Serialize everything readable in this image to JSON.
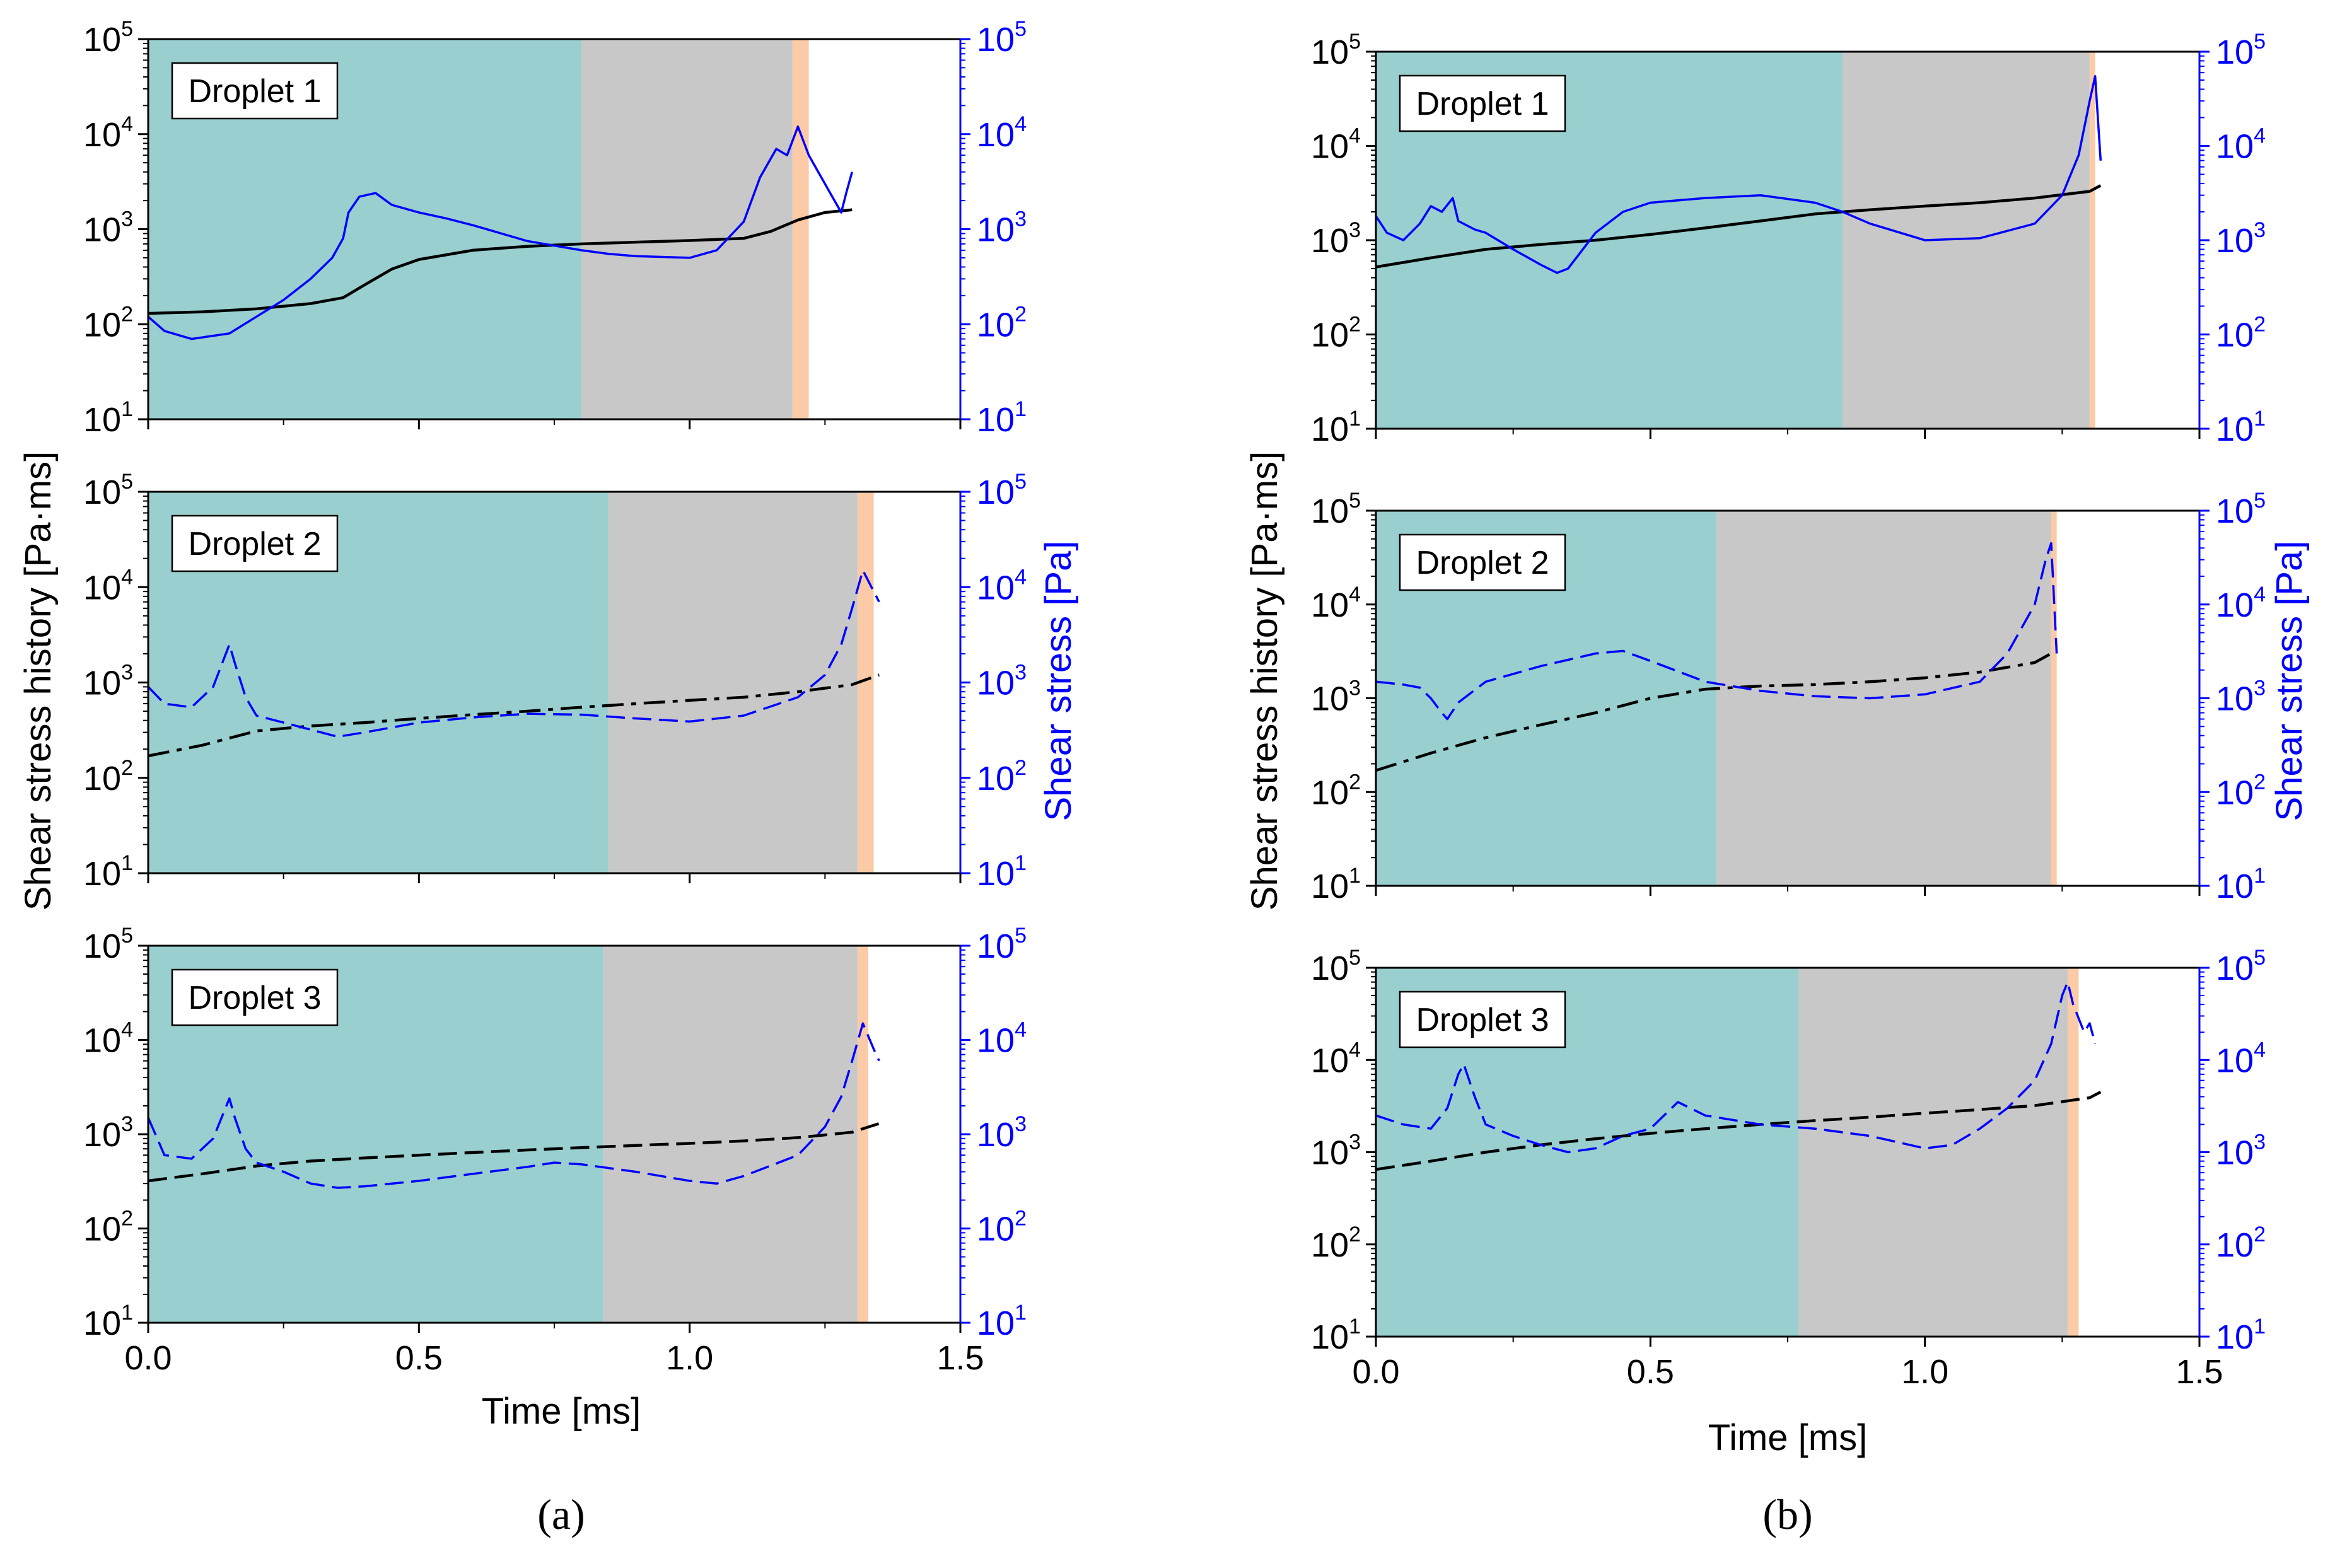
{
  "figure": {
    "left_ylabel": "Shear stress history [Pa·ms]",
    "right_ylabel": "Shear stress [Pa]",
    "xlabel": "Time [ms]",
    "xticks": [
      "0.0",
      "0.5",
      "1.0",
      "1.5"
    ],
    "yticks": [
      {
        "base": "10",
        "exp": "1"
      },
      {
        "base": "10",
        "exp": "2"
      },
      {
        "base": "10",
        "exp": "3"
      },
      {
        "base": "10",
        "exp": "4"
      },
      {
        "base": "10",
        "exp": "5"
      }
    ],
    "caption_a": "(a)",
    "caption_b": "(b)",
    "colors": {
      "phase1": "#99CFCF",
      "phase2": "#C8C8C8",
      "phase3": "#FACBA6",
      "history": "#000000",
      "stress": "#0000FF"
    }
  },
  "chart_data": [
    {
      "type": "line",
      "panel": "a",
      "title": "Droplet 1",
      "xlim": [
        0,
        1.5
      ],
      "ylim": [
        10,
        100000
      ],
      "yscale": "log",
      "phases": [
        [
          0,
          0.8
        ],
        [
          0.8,
          1.19
        ],
        [
          1.19,
          1.22
        ]
      ],
      "series": [
        {
          "name": "Shear stress history",
          "axis": "left",
          "style": "solid",
          "x": [
            0,
            0.1,
            0.2,
            0.3,
            0.36,
            0.4,
            0.45,
            0.5,
            0.6,
            0.7,
            0.8,
            0.9,
            1.0,
            1.1,
            1.15,
            1.2,
            1.25,
            1.3
          ],
          "y": [
            130,
            135,
            145,
            165,
            190,
            260,
            380,
            480,
            600,
            660,
            700,
            730,
            760,
            800,
            950,
            1250,
            1500,
            1600
          ]
        },
        {
          "name": "Shear stress",
          "axis": "right",
          "style": "solid",
          "x": [
            0,
            0.03,
            0.08,
            0.15,
            0.2,
            0.25,
            0.3,
            0.34,
            0.36,
            0.37,
            0.39,
            0.42,
            0.45,
            0.5,
            0.55,
            0.6,
            0.7,
            0.8,
            0.85,
            0.9,
            1.0,
            1.05,
            1.1,
            1.13,
            1.16,
            1.18,
            1.2,
            1.22,
            1.25,
            1.28,
            1.29,
            1.3
          ],
          "y": [
            120,
            85,
            70,
            80,
            120,
            180,
            300,
            500,
            800,
            1500,
            2200,
            2400,
            1800,
            1500,
            1300,
            1100,
            750,
            600,
            550,
            520,
            500,
            600,
            1200,
            3500,
            7000,
            6000,
            12000,
            6000,
            3000,
            1500,
            2500,
            4000
          ]
        }
      ]
    },
    {
      "type": "line",
      "panel": "a",
      "title": "Droplet 2",
      "xlim": [
        0,
        1.5
      ],
      "ylim": [
        10,
        100000
      ],
      "yscale": "log",
      "phases": [
        [
          0,
          0.85
        ],
        [
          0.85,
          1.31
        ],
        [
          1.31,
          1.34
        ]
      ],
      "series": [
        {
          "name": "Shear stress history",
          "axis": "left",
          "style": "dashdot",
          "x": [
            0,
            0.1,
            0.2,
            0.3,
            0.4,
            0.5,
            0.6,
            0.7,
            0.8,
            0.9,
            1.0,
            1.1,
            1.2,
            1.3,
            1.35
          ],
          "y": [
            170,
            220,
            310,
            350,
            380,
            420,
            460,
            500,
            550,
            600,
            650,
            700,
            800,
            950,
            1200
          ]
        },
        {
          "name": "Shear stress",
          "axis": "right",
          "style": "dashed",
          "x": [
            0,
            0.03,
            0.08,
            0.12,
            0.15,
            0.16,
            0.18,
            0.2,
            0.25,
            0.3,
            0.35,
            0.4,
            0.5,
            0.6,
            0.7,
            0.8,
            0.9,
            1.0,
            1.1,
            1.2,
            1.25,
            1.28,
            1.3,
            1.32,
            1.34,
            1.35
          ],
          "y": [
            900,
            600,
            550,
            900,
            2500,
            1600,
            700,
            450,
            380,
            320,
            270,
            300,
            380,
            430,
            470,
            460,
            420,
            390,
            450,
            700,
            1200,
            2500,
            6000,
            15000,
            9000,
            7000
          ]
        }
      ]
    },
    {
      "type": "line",
      "panel": "a",
      "title": "Droplet 3",
      "xlim": [
        0,
        1.5
      ],
      "ylim": [
        10,
        100000
      ],
      "yscale": "log",
      "phases": [
        [
          0,
          0.84
        ],
        [
          0.84,
          1.31
        ],
        [
          1.31,
          1.33
        ]
      ],
      "series": [
        {
          "name": "Shear stress history",
          "axis": "left",
          "style": "dashed",
          "x": [
            0,
            0.1,
            0.2,
            0.3,
            0.4,
            0.5,
            0.6,
            0.7,
            0.8,
            0.9,
            1.0,
            1.1,
            1.2,
            1.3,
            1.35
          ],
          "y": [
            320,
            380,
            460,
            520,
            560,
            600,
            640,
            680,
            720,
            760,
            800,
            850,
            920,
            1050,
            1300
          ]
        },
        {
          "name": "Shear stress",
          "axis": "right",
          "style": "dashed",
          "x": [
            0,
            0.03,
            0.08,
            0.12,
            0.15,
            0.16,
            0.18,
            0.2,
            0.25,
            0.3,
            0.35,
            0.4,
            0.5,
            0.6,
            0.7,
            0.75,
            0.8,
            0.9,
            1.0,
            1.05,
            1.1,
            1.2,
            1.25,
            1.28,
            1.3,
            1.32,
            1.34,
            1.35
          ],
          "y": [
            1500,
            600,
            550,
            900,
            2400,
            1500,
            700,
            500,
            400,
            300,
            270,
            280,
            320,
            380,
            450,
            500,
            480,
            400,
            320,
            300,
            360,
            600,
            1200,
            2500,
            6000,
            15000,
            8000,
            6000
          ]
        }
      ]
    },
    {
      "type": "line",
      "panel": "b",
      "title": "Droplet 1",
      "xlim": [
        0,
        1.5
      ],
      "ylim": [
        10,
        100000
      ],
      "yscale": "log",
      "phases": [
        [
          0,
          0.85
        ],
        [
          0.85,
          1.3
        ],
        [
          1.3,
          1.31
        ]
      ],
      "series": [
        {
          "name": "Shear stress history",
          "axis": "left",
          "style": "solid",
          "x": [
            0,
            0.1,
            0.2,
            0.3,
            0.4,
            0.5,
            0.6,
            0.7,
            0.8,
            0.9,
            1.0,
            1.1,
            1.2,
            1.3,
            1.32
          ],
          "y": [
            520,
            650,
            800,
            900,
            1000,
            1150,
            1350,
            1600,
            1900,
            2100,
            2300,
            2500,
            2800,
            3300,
            3800
          ]
        },
        {
          "name": "Shear stress",
          "axis": "right",
          "style": "solid",
          "x": [
            0,
            0.02,
            0.05,
            0.08,
            0.1,
            0.12,
            0.14,
            0.15,
            0.18,
            0.2,
            0.25,
            0.3,
            0.33,
            0.35,
            0.4,
            0.45,
            0.5,
            0.6,
            0.7,
            0.8,
            0.85,
            0.9,
            1.0,
            1.1,
            1.2,
            1.25,
            1.28,
            1.3,
            1.31,
            1.32
          ],
          "y": [
            1800,
            1200,
            1000,
            1500,
            2300,
            2000,
            2800,
            1600,
            1300,
            1200,
            800,
            550,
            450,
            500,
            1200,
            2000,
            2500,
            2800,
            3000,
            2500,
            2000,
            1500,
            1000,
            1050,
            1500,
            3000,
            8000,
            30000,
            55000,
            7000
          ]
        }
      ]
    },
    {
      "type": "line",
      "panel": "b",
      "title": "Droplet 2",
      "xlim": [
        0,
        1.5
      ],
      "ylim": [
        10,
        100000
      ],
      "yscale": "log",
      "phases": [
        [
          0,
          0.62
        ],
        [
          0.62,
          1.23
        ],
        [
          1.23,
          1.24
        ]
      ],
      "series": [
        {
          "name": "Shear stress history",
          "axis": "left",
          "style": "dashdot",
          "x": [
            0,
            0.1,
            0.2,
            0.3,
            0.4,
            0.5,
            0.6,
            0.7,
            0.8,
            0.9,
            1.0,
            1.1,
            1.2,
            1.23
          ],
          "y": [
            170,
            260,
            380,
            520,
            700,
            1000,
            1250,
            1350,
            1400,
            1500,
            1650,
            1900,
            2400,
            3000
          ]
        },
        {
          "name": "Shear stress",
          "axis": "right",
          "style": "dashed",
          "x": [
            0,
            0.05,
            0.08,
            0.1,
            0.12,
            0.13,
            0.15,
            0.2,
            0.3,
            0.4,
            0.45,
            0.5,
            0.6,
            0.7,
            0.8,
            0.9,
            1.0,
            1.1,
            1.15,
            1.2,
            1.22,
            1.23,
            1.24
          ],
          "y": [
            1500,
            1400,
            1300,
            1000,
            700,
            600,
            900,
            1500,
            2200,
            3000,
            3200,
            2500,
            1500,
            1200,
            1050,
            1000,
            1100,
            1500,
            3000,
            10000,
            30000,
            45000,
            3000
          ]
        }
      ]
    },
    {
      "type": "line",
      "panel": "b",
      "title": "Droplet 3",
      "xlim": [
        0,
        1.5
      ],
      "ylim": [
        10,
        100000
      ],
      "yscale": "log",
      "phases": [
        [
          0,
          0.77
        ],
        [
          0.77,
          1.26
        ],
        [
          1.26,
          1.28
        ]
      ],
      "series": [
        {
          "name": "Shear stress history",
          "axis": "left",
          "style": "dashed",
          "x": [
            0,
            0.1,
            0.2,
            0.3,
            0.4,
            0.5,
            0.6,
            0.7,
            0.8,
            0.9,
            1.0,
            1.1,
            1.2,
            1.3,
            1.32
          ],
          "y": [
            650,
            800,
            1000,
            1200,
            1400,
            1600,
            1800,
            2000,
            2200,
            2400,
            2650,
            2900,
            3200,
            3900,
            4500
          ]
        },
        {
          "name": "Shear stress",
          "axis": "right",
          "style": "dashed",
          "x": [
            0,
            0.05,
            0.1,
            0.13,
            0.15,
            0.16,
            0.18,
            0.2,
            0.25,
            0.3,
            0.35,
            0.4,
            0.45,
            0.5,
            0.55,
            0.6,
            0.7,
            0.8,
            0.9,
            1.0,
            1.05,
            1.1,
            1.15,
            1.2,
            1.23,
            1.25,
            1.26,
            1.27,
            1.29,
            1.3,
            1.31
          ],
          "y": [
            2500,
            2000,
            1800,
            3000,
            7000,
            9000,
            4000,
            2000,
            1500,
            1200,
            1000,
            1100,
            1500,
            1800,
            3500,
            2500,
            2000,
            1800,
            1500,
            1100,
            1200,
            1800,
            3000,
            6000,
            15000,
            50000,
            70000,
            40000,
            20000,
            25000,
            15000
          ]
        }
      ]
    }
  ]
}
